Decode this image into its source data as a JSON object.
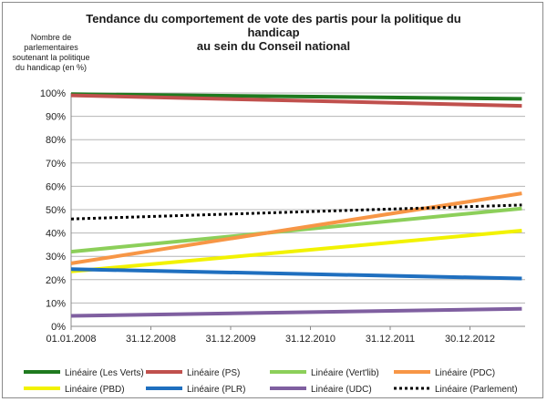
{
  "chart_data": {
    "type": "line",
    "title_lines": [
      "Tendance du comportement de vote des partis pour la politique du",
      "handicap",
      "au sein du Conseil national"
    ],
    "ylabel_lines": [
      "Nombre de",
      "parlementaires",
      "soutenant la politique",
      "du handicap (en %)"
    ],
    "x_ticks": [
      "01.01.2008",
      "31.12.2008",
      "31.12.2009",
      "31.12.2010",
      "31.12.2011",
      "30.12.2012"
    ],
    "y_ticks": [
      "0%",
      "10%",
      "20%",
      "30%",
      "40%",
      "50%",
      "60%",
      "70%",
      "80%",
      "90%",
      "100%"
    ],
    "ylim": [
      0,
      100
    ],
    "xlim": [
      "2008-01-01",
      "2013-09-15"
    ],
    "grid": "horizontal",
    "legend_position": "bottom",
    "series": [
      {
        "name": "Linéaire (Les Verts)",
        "color": "#1f7a1f",
        "dashed": false,
        "x": [
          "2008-01-01",
          "2013-08-31"
        ],
        "y": [
          99.5,
          97.5
        ]
      },
      {
        "name": "Linéaire (PS)",
        "color": "#c0504d",
        "dashed": false,
        "x": [
          "2008-01-01",
          "2013-08-31"
        ],
        "y": [
          99,
          94.5
        ]
      },
      {
        "name": "Linéaire (Vert'lib)",
        "color": "#8ccf5a",
        "dashed": false,
        "x": [
          "2008-01-01",
          "2013-08-31"
        ],
        "y": [
          32,
          50.5
        ]
      },
      {
        "name": "Linéaire (PDC)",
        "color": "#f79646",
        "dashed": false,
        "x": [
          "2008-01-01",
          "2013-08-31"
        ],
        "y": [
          27,
          57
        ]
      },
      {
        "name": "Linéaire (PBD)",
        "color": "#f2f200",
        "dashed": false,
        "x": [
          "2008-01-01",
          "2013-08-31"
        ],
        "y": [
          23.5,
          41
        ]
      },
      {
        "name": "Linéaire (PLR)",
        "color": "#1f6fbf",
        "dashed": false,
        "x": [
          "2008-01-01",
          "2013-08-31"
        ],
        "y": [
          24.5,
          20.5
        ]
      },
      {
        "name": "Linéaire (UDC)",
        "color": "#7f5fa0",
        "dashed": false,
        "x": [
          "2008-01-01",
          "2013-08-31"
        ],
        "y": [
          4.5,
          7.5
        ]
      },
      {
        "name": "Linéaire (Parlement)",
        "color": "#000000",
        "dashed": true,
        "x": [
          "2008-01-01",
          "2013-08-31"
        ],
        "y": [
          46,
          52
        ]
      }
    ]
  }
}
